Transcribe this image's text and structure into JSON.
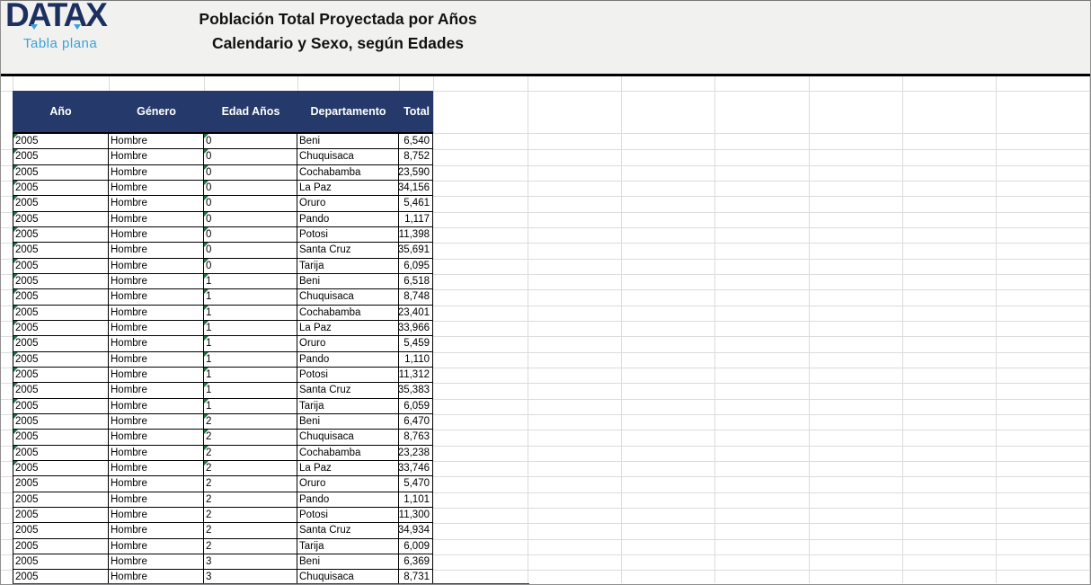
{
  "brand": {
    "logo": "DATAX",
    "subtitle": "Tabla plana"
  },
  "title": {
    "line1": "Población Total Proyectada por Años",
    "line2": "Calendario y Sexo, según Edades"
  },
  "colors": {
    "header_bg": "#253a6b",
    "logo_blue": "#1c3060",
    "accent_blue": "#3ba3d6",
    "band_bg": "#f1f1f0",
    "flag_green": "#1e7145"
  },
  "table": {
    "columns": [
      "Año",
      "Género",
      "Edad Años",
      "Departamento",
      "Total"
    ],
    "rows": [
      {
        "ano": "2005",
        "genero": "Hombre",
        "edad": "0",
        "departamento": "Beni",
        "total": "6,540",
        "flag": true
      },
      {
        "ano": "2005",
        "genero": "Hombre",
        "edad": "0",
        "departamento": "Chuquisaca",
        "total": "8,752",
        "flag": true
      },
      {
        "ano": "2005",
        "genero": "Hombre",
        "edad": "0",
        "departamento": "Cochabamba",
        "total": "23,590",
        "flag": true
      },
      {
        "ano": "2005",
        "genero": "Hombre",
        "edad": "0",
        "departamento": "La Paz",
        "total": "34,156",
        "flag": true
      },
      {
        "ano": "2005",
        "genero": "Hombre",
        "edad": "0",
        "departamento": "Oruro",
        "total": "5,461",
        "flag": true
      },
      {
        "ano": "2005",
        "genero": "Hombre",
        "edad": "0",
        "departamento": "Pando",
        "total": "1,117",
        "flag": true
      },
      {
        "ano": "2005",
        "genero": "Hombre",
        "edad": "0",
        "departamento": "Potosi",
        "total": "11,398",
        "flag": true
      },
      {
        "ano": "2005",
        "genero": "Hombre",
        "edad": "0",
        "departamento": "Santa Cruz",
        "total": "35,691",
        "flag": true
      },
      {
        "ano": "2005",
        "genero": "Hombre",
        "edad": "0",
        "departamento": "Tarija",
        "total": "6,095",
        "flag": true
      },
      {
        "ano": "2005",
        "genero": "Hombre",
        "edad": "1",
        "departamento": "Beni",
        "total": "6,518",
        "flag": true
      },
      {
        "ano": "2005",
        "genero": "Hombre",
        "edad": "1",
        "departamento": "Chuquisaca",
        "total": "8,748",
        "flag": true
      },
      {
        "ano": "2005",
        "genero": "Hombre",
        "edad": "1",
        "departamento": "Cochabamba",
        "total": "23,401",
        "flag": true
      },
      {
        "ano": "2005",
        "genero": "Hombre",
        "edad": "1",
        "departamento": "La Paz",
        "total": "33,966",
        "flag": true
      },
      {
        "ano": "2005",
        "genero": "Hombre",
        "edad": "1",
        "departamento": "Oruro",
        "total": "5,459",
        "flag": true
      },
      {
        "ano": "2005",
        "genero": "Hombre",
        "edad": "1",
        "departamento": "Pando",
        "total": "1,110",
        "flag": true
      },
      {
        "ano": "2005",
        "genero": "Hombre",
        "edad": "1",
        "departamento": "Potosi",
        "total": "11,312",
        "flag": true
      },
      {
        "ano": "2005",
        "genero": "Hombre",
        "edad": "1",
        "departamento": "Santa Cruz",
        "total": "35,383",
        "flag": true
      },
      {
        "ano": "2005",
        "genero": "Hombre",
        "edad": "1",
        "departamento": "Tarija",
        "total": "6,059",
        "flag": true
      },
      {
        "ano": "2005",
        "genero": "Hombre",
        "edad": "2",
        "departamento": "Beni",
        "total": "6,470",
        "flag": true
      },
      {
        "ano": "2005",
        "genero": "Hombre",
        "edad": "2",
        "departamento": "Chuquisaca",
        "total": "8,763",
        "flag": true
      },
      {
        "ano": "2005",
        "genero": "Hombre",
        "edad": "2",
        "departamento": "Cochabamba",
        "total": "23,238",
        "flag": true
      },
      {
        "ano": "2005",
        "genero": "Hombre",
        "edad": "2",
        "departamento": "La Paz",
        "total": "33,746",
        "flag": true
      },
      {
        "ano": "2005",
        "genero": "Hombre",
        "edad": "2",
        "departamento": "Oruro",
        "total": "5,470",
        "flag": false
      },
      {
        "ano": "2005",
        "genero": "Hombre",
        "edad": "2",
        "departamento": "Pando",
        "total": "1,101",
        "flag": false
      },
      {
        "ano": "2005",
        "genero": "Hombre",
        "edad": "2",
        "departamento": "Potosi",
        "total": "11,300",
        "flag": false
      },
      {
        "ano": "2005",
        "genero": "Hombre",
        "edad": "2",
        "departamento": "Santa Cruz",
        "total": "34,934",
        "flag": false
      },
      {
        "ano": "2005",
        "genero": "Hombre",
        "edad": "2",
        "departamento": "Tarija",
        "total": "6,009",
        "flag": false
      },
      {
        "ano": "2005",
        "genero": "Hombre",
        "edad": "3",
        "departamento": "Beni",
        "total": "6,369",
        "flag": false
      },
      {
        "ano": "2005",
        "genero": "Hombre",
        "edad": "3",
        "departamento": "Chuquisaca",
        "total": "8,731",
        "flag": false
      }
    ]
  }
}
